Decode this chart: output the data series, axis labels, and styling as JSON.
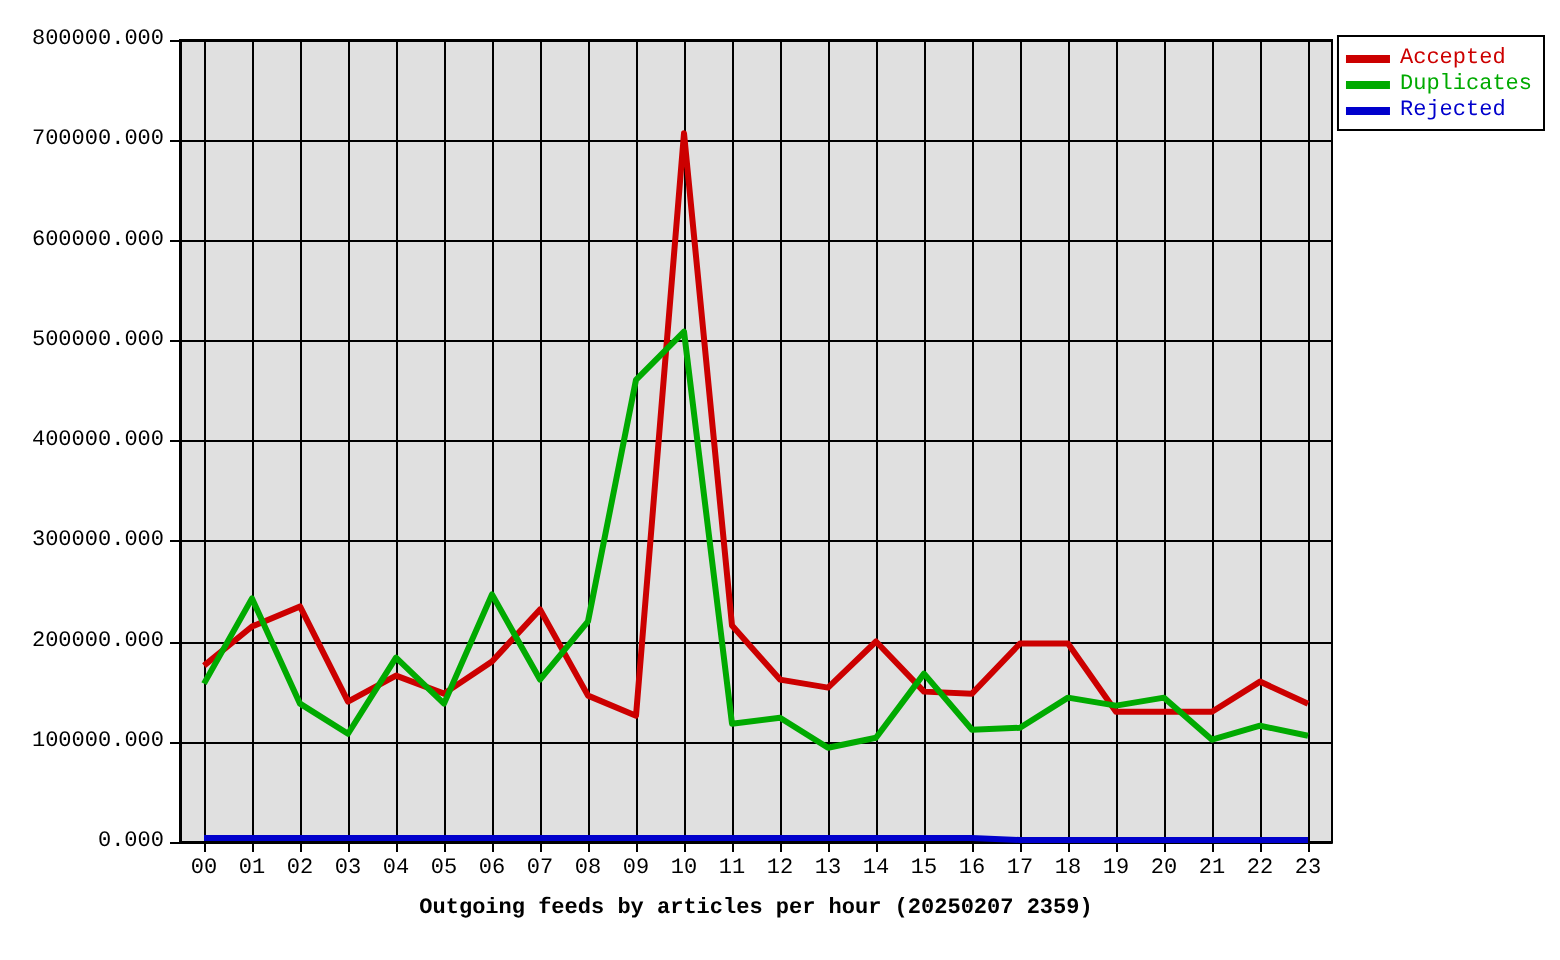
{
  "chart_data": {
    "type": "line",
    "xlabel": "Outgoing feeds by articles per hour (20250207 2359)",
    "categories": [
      "00",
      "01",
      "02",
      "03",
      "04",
      "05",
      "06",
      "07",
      "08",
      "09",
      "10",
      "11",
      "12",
      "13",
      "14",
      "15",
      "16",
      "17",
      "18",
      "19",
      "20",
      "21",
      "22",
      "23"
    ],
    "series": [
      {
        "name": "Accepted",
        "color": "#cc0000",
        "values": [
          176000,
          215000,
          235000,
          140000,
          166000,
          148000,
          180000,
          232000,
          146000,
          126000,
          707000,
          216000,
          162000,
          154000,
          200000,
          150000,
          148000,
          198000,
          198000,
          130000,
          130000,
          130000,
          160000,
          138000
        ]
      },
      {
        "name": "Duplicates",
        "color": "#00aa00",
        "values": [
          158000,
          243000,
          138000,
          108000,
          184000,
          138000,
          247000,
          162000,
          220000,
          461000,
          509000,
          118000,
          124000,
          94000,
          104000,
          168000,
          112000,
          114000,
          144000,
          136000,
          144000,
          102000,
          116000,
          106000
        ]
      },
      {
        "name": "Rejected",
        "color": "#0000cc",
        "values": [
          4000,
          4000,
          4000,
          4000,
          4000,
          4000,
          4000,
          4000,
          4000,
          4000,
          4000,
          4000,
          4000,
          4000,
          4000,
          4000,
          4000,
          2000,
          2000,
          2000,
          2000,
          2000,
          2000,
          2000
        ]
      }
    ],
    "ylim": [
      0,
      800000
    ],
    "yticks": [
      {
        "value": 0,
        "label": "0.000"
      },
      {
        "value": 100000,
        "label": "100000.000"
      },
      {
        "value": 200000,
        "label": "200000.000"
      },
      {
        "value": 300000,
        "label": "300000.000"
      },
      {
        "value": 400000,
        "label": "400000.000"
      },
      {
        "value": 500000,
        "label": "500000.000"
      },
      {
        "value": 600000,
        "label": "600000.000"
      },
      {
        "value": 700000,
        "label": "700000.000"
      },
      {
        "value": 800000,
        "label": "800000.000"
      }
    ],
    "grid": true,
    "legend": "top right"
  }
}
